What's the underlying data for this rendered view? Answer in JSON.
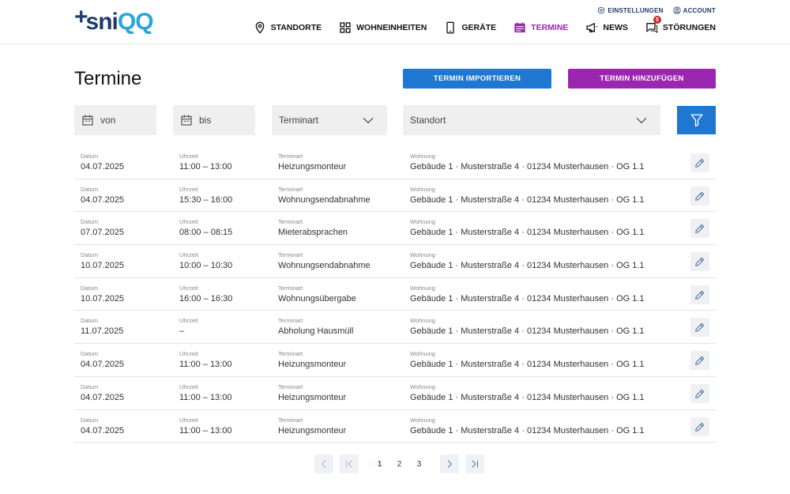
{
  "brand": {
    "plus": "+",
    "name_a": "sni",
    "name_b": "QQ"
  },
  "toplinks": {
    "settings": "EINSTELLUNGEN",
    "account": "ACCOUNT"
  },
  "nav": {
    "standorte": "STANDORTE",
    "wohneinheiten": "WOHNEINHEITEN",
    "geraete": "GERÄTE",
    "termine": "TERMINE",
    "news": "NEWS",
    "stoerungen": "STÖRUNGEN",
    "stoerungen_badge": "5",
    "active": "termine"
  },
  "page": {
    "title": "Termine",
    "import_label": "TERMIN IMPORTIEREN",
    "add_label": "TERMIN HINZUFÜGEN"
  },
  "filters": {
    "von": "von",
    "bis": "bis",
    "terminart": "Terminart",
    "standort": "Standort"
  },
  "labels": {
    "datum": "Datum",
    "uhrzeit": "Uhrzeit",
    "terminart": "Terminart",
    "wohnung": "Wohnung"
  },
  "rows": [
    {
      "datum": "04.07.2025",
      "uhrzeit": "11:00 – 13:00",
      "terminart": "Heizungsmonteur",
      "wohnung": "Gebäude 1 · Musterstraße 4 · 01234 Musterhausen · OG 1.1"
    },
    {
      "datum": "04.07.2025",
      "uhrzeit": "15:30 – 16:00",
      "terminart": "Wohnungsendabnahme",
      "wohnung": "Gebäude 1 · Musterstraße 4 · 01234 Musterhausen · OG 1.1"
    },
    {
      "datum": "07.07.2025",
      "uhrzeit": "08:00 – 08:15",
      "terminart": "Mieterabsprachen",
      "wohnung": "Gebäude 1 · Musterstraße 4 · 01234 Musterhausen · OG 1.1"
    },
    {
      "datum": "10.07.2025",
      "uhrzeit": "10:00 – 10:30",
      "terminart": "Wohnungsendabnahme",
      "wohnung": "Gebäude 1 · Musterstraße 4 · 01234 Musterhausen · OG 1.1"
    },
    {
      "datum": "10.07.2025",
      "uhrzeit": "16:00 – 16:30",
      "terminart": "Wohnungsübergabe",
      "wohnung": "Gebäude 1 · Musterstraße 4 · 01234 Musterhausen · OG 1.1"
    },
    {
      "datum": "11.07.2025",
      "uhrzeit": "–",
      "terminart": "Abholung Hausmüll",
      "wohnung": "Gebäude 1 · Musterstraße 4 · 01234 Musterhausen · OG 1.1"
    },
    {
      "datum": "04.07.2025",
      "uhrzeit": "11:00 – 13:00",
      "terminart": "Heizungsmonteur",
      "wohnung": "Gebäude 1 · Musterstraße 4 · 01234 Musterhausen · OG 1.1"
    },
    {
      "datum": "04.07.2025",
      "uhrzeit": "11:00 – 13:00",
      "terminart": "Heizungsmonteur",
      "wohnung": "Gebäude 1 · Musterstraße 4 · 01234 Musterhausen · OG 1.1"
    },
    {
      "datum": "04.07.2025",
      "uhrzeit": "11:00 – 13:00",
      "terminart": "Heizungsmonteur",
      "wohnung": "Gebäude 1 · Musterstraße 4 · 01234 Musterhausen · OG 1.1"
    }
  ],
  "pagination": {
    "pages": [
      "1",
      "2",
      "3"
    ],
    "current": "1"
  },
  "colors": {
    "primary": "#1f77d2",
    "accent": "#9b27b0",
    "brand_dark": "#1f3a6b",
    "brand_light": "#2aa6d8",
    "badge": "#c62828"
  }
}
